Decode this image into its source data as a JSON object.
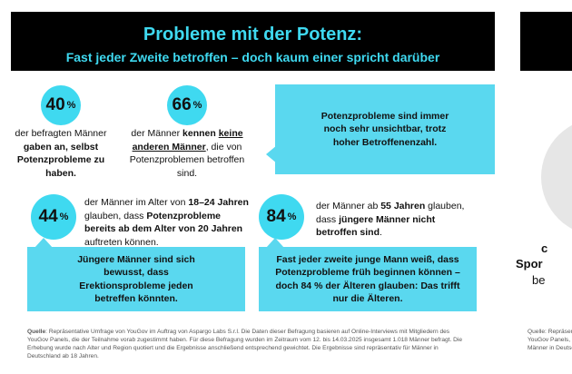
{
  "header": {
    "title": "Probleme mit der Potenz:",
    "subtitle": "Fast jeder Zweite betroffen – doch kaum einer spricht darüber"
  },
  "stats": [
    {
      "value": 40,
      "unit": "%",
      "text": [
        "der befragten Männer ",
        "gaben an, selbst Potenzprobleme zu haben."
      ]
    },
    {
      "value": 66,
      "unit": "%",
      "text": [
        "der Männer ",
        "kennen ",
        "keine anderen Männer",
        ", die von Potenzproblemen betroffen sind."
      ]
    },
    {
      "value": 44,
      "unit": "%",
      "text": [
        "der Männer im Alter von ",
        "18–24 Jahren",
        " glauben, dass ",
        "Potenzprobleme bereits ab dem Alter von 20 Jahren",
        " auftreten können."
      ]
    },
    {
      "value": 84,
      "unit": "%",
      "text": [
        "der Männer ab ",
        "55 Jahren",
        " glauben, dass ",
        "jüngere Männer nicht betroffen sind",
        "."
      ]
    }
  ],
  "callouts": [
    "Potenzprobleme sind immer noch sehr unsichtbar, trotz hoher Betroffenenzahl.",
    "Jüngere Männer sind sich bewusst, dass Erektionsprobleme jeden betreffen könnten.",
    "Fast jeder zweite junge Mann weiß, dass Potenzprobleme früh beginnen können – doch 84 % der Älteren glauben: Das trifft nur die Älteren."
  ],
  "source": {
    "label": "Quelle",
    "text": ": Repräsentative Umfrage von YouGov im Auftrag von Aspargo Labs S.r.l. Die Daten dieser Befragung basieren auf Online-Interviews mit Mitgliedern des YouGov Panels, die der Teilnahme vorab zugestimmt haben. Für diese Befragung wurden im Zeitraum vom 12. bis 14.03.2025 insgesamt 1.018 Männer befragt. Die Erhebung wurde nach Alter und Region quotiert und die Ergebnisse anschließend entsprechend gewichtet. Die Ergebnisse sind repräsentativ für Männer in Deutschland ab 18 Jahren."
  },
  "next_panel": {
    "lines": [
      "c",
      "Spor",
      "be"
    ],
    "source": [
      "Quelle: Repräsent",
      "YouGov Panels,",
      "Männer in Deutsch"
    ]
  }
}
